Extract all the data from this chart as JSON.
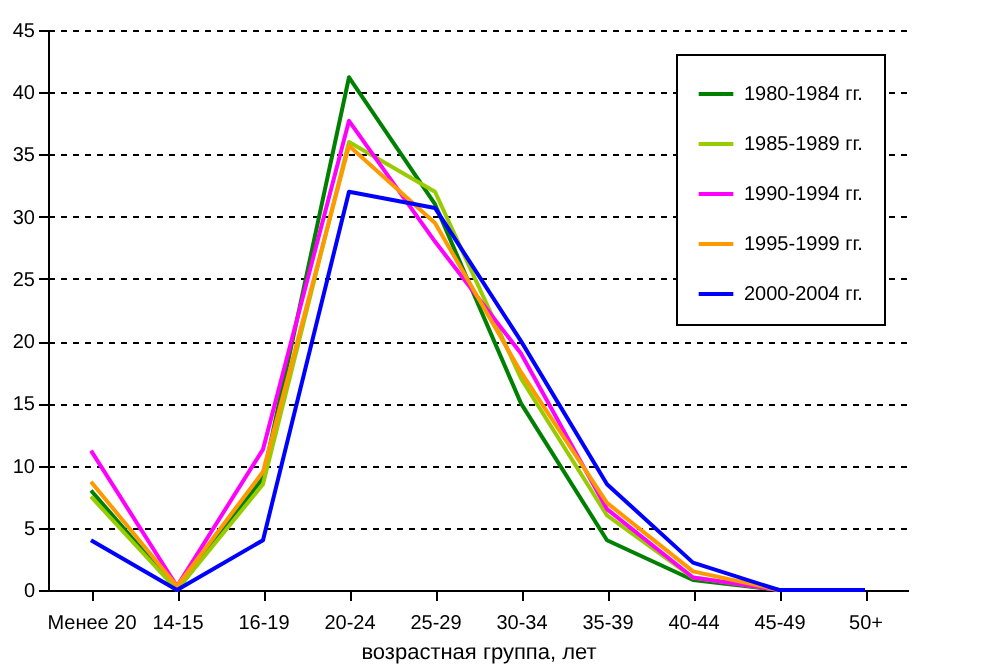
{
  "chart_data": {
    "type": "line",
    "xlabel": "возрастная группа, лет",
    "categories": [
      "Менее 20",
      "14-15",
      "16-19",
      "20-24",
      "25-29",
      "30-34",
      "35-39",
      "40-44",
      "45-49",
      "50+"
    ],
    "series": [
      {
        "name": "1980-1984 гг.",
        "color": "#008000",
        "values": [
          8,
          0,
          9,
          41.2,
          31,
          15,
          4,
          0.8,
          0,
          0
        ]
      },
      {
        "name": "1985-1989 гг.",
        "color": "#99cc00",
        "values": [
          7.5,
          0,
          8.5,
          36,
          32,
          17,
          6,
          1,
          0,
          0
        ]
      },
      {
        "name": "1990-1994 гг.",
        "color": "#ff00ff",
        "values": [
          11.2,
          0.3,
          11.3,
          37.7,
          28,
          19,
          6.5,
          1,
          0,
          0
        ]
      },
      {
        "name": "1995-1999 гг.",
        "color": "#ff9900",
        "values": [
          8.7,
          0.3,
          9.5,
          35.7,
          29.5,
          17.5,
          7,
          1.5,
          0,
          0
        ]
      },
      {
        "name": "2000-2004 гг.",
        "color": "#0000ff",
        "values": [
          4,
          0,
          4,
          32,
          30.7,
          20,
          8.5,
          2.2,
          0,
          0
        ]
      }
    ],
    "ylim": [
      0,
      45
    ],
    "yticks": [
      0,
      5,
      10,
      15,
      20,
      25,
      30,
      35,
      40,
      45
    ],
    "grid": "y",
    "legend": "top right",
    "marker": "none",
    "line_style": "solid"
  }
}
